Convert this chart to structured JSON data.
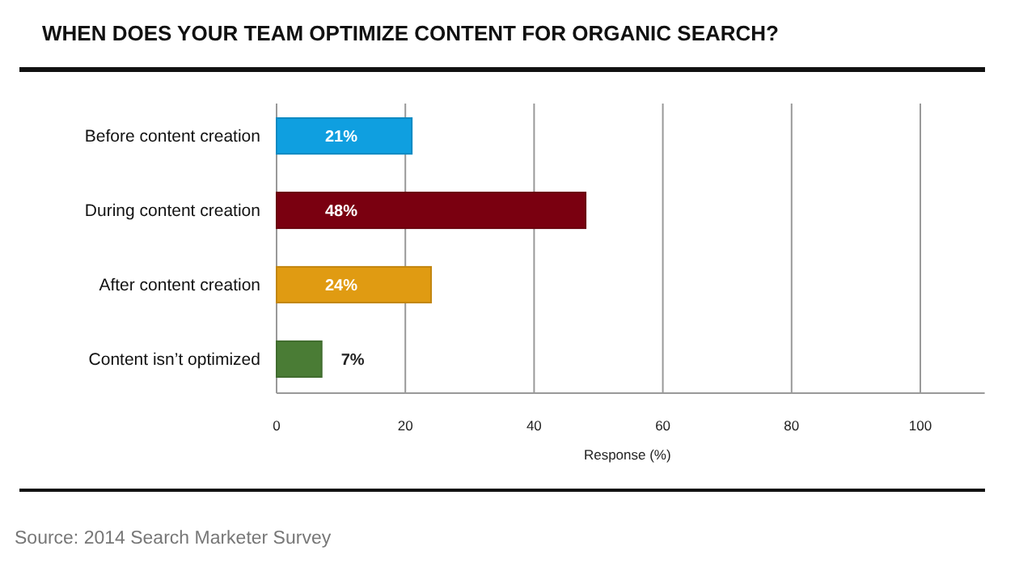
{
  "chart_data": {
    "type": "bar",
    "orientation": "horizontal",
    "title": "WHEN DOES YOUR TEAM OPTIMIZE CONTENT FOR ORGANIC SEARCH?",
    "categories": [
      "Before content creation",
      "During content creation",
      "After content creation",
      "Content isn’t optimized"
    ],
    "values": [
      21,
      48,
      24,
      7
    ],
    "colors": [
      "#0f9fe0",
      "#7a0010",
      "#e09b12",
      "#4a7c35"
    ],
    "value_labels": [
      "21%",
      "48%",
      "24%",
      "7%"
    ],
    "xlabel": "Response (%)",
    "xlim": [
      0,
      110
    ],
    "xticks": [
      0,
      20,
      40,
      60,
      80,
      100
    ],
    "grid": "x",
    "annotations": [
      "Source: 2014 Search Marketer Survey"
    ]
  }
}
